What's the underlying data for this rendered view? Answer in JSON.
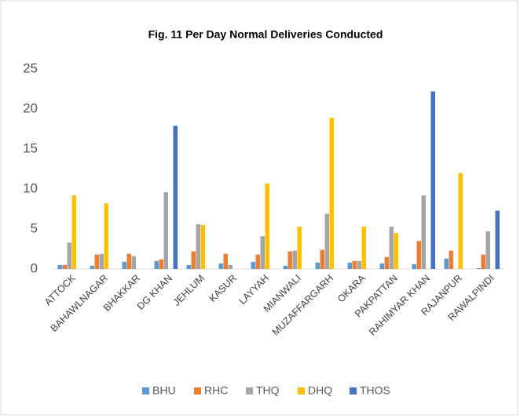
{
  "chart_data": {
    "type": "bar",
    "title": "Fig. 11  Per Day Normal Deliveries Conducted",
    "categories": [
      "ATTOCK",
      "BAHAWLNAGAR",
      "BHAKKAR",
      "DG KHAN",
      "JEHLUM",
      "KASUR",
      "LAYYAH",
      "MIANWALI",
      "MUZAFFARGARH",
      "OKARA",
      "PAKPATTAN",
      "RAHIMYAR KHAN",
      "RAJANPUR",
      "RAWALPINDI"
    ],
    "series": [
      {
        "name": "BHU",
        "color": "#5b9bd5",
        "values": [
          0.5,
          0.4,
          0.9,
          1.0,
          0.5,
          0.7,
          0.9,
          0.4,
          0.8,
          0.8,
          0.7,
          0.6,
          1.3,
          0.1
        ]
      },
      {
        "name": "RHC",
        "color": "#ed7d31",
        "values": [
          0.5,
          1.8,
          1.9,
          1.2,
          2.2,
          1.9,
          1.8,
          2.2,
          2.4,
          1.0,
          1.5,
          3.5,
          2.3,
          1.8
        ]
      },
      {
        "name": "THQ",
        "color": "#a5a5a5",
        "values": [
          3.3,
          1.9,
          1.6,
          9.6,
          5.6,
          0.5,
          4.1,
          2.3,
          6.9,
          1.0,
          5.3,
          9.2,
          0,
          4.7
        ]
      },
      {
        "name": "DHQ",
        "color": "#ffc000",
        "values": [
          9.2,
          8.2,
          0,
          0,
          5.5,
          0,
          10.7,
          5.3,
          18.9,
          5.3,
          4.5,
          0,
          12.0,
          0
        ]
      },
      {
        "name": "THOS",
        "color": "#4472c4",
        "values": [
          0,
          0,
          0,
          17.9,
          0,
          0,
          0,
          0,
          0,
          0,
          0,
          22.2,
          0,
          7.3
        ]
      }
    ],
    "ylim": [
      0,
      25
    ],
    "yticks": [
      0,
      5,
      10,
      15,
      20,
      25
    ],
    "grid": false,
    "legend": "bottom"
  }
}
